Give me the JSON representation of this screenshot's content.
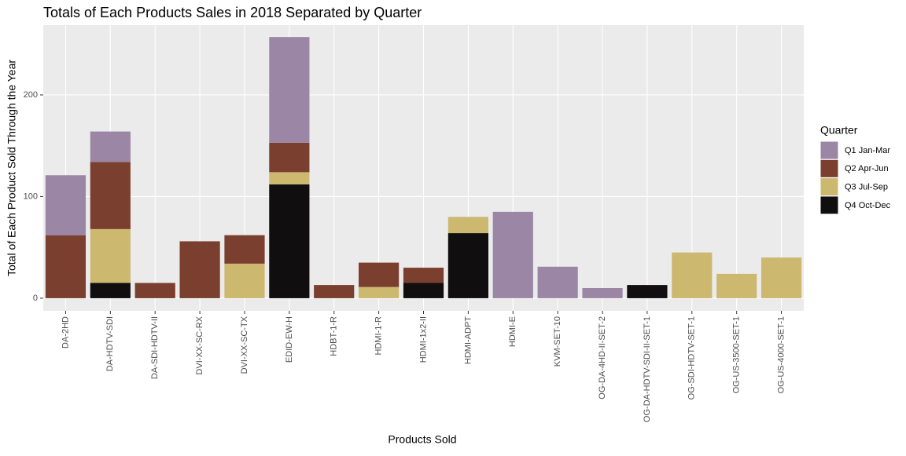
{
  "chart_data": {
    "type": "stacked-bar",
    "title": "Totals of Each Products Sales in 2018 Separated by Quarter",
    "x_label": "Products Sold",
    "y_label": "Total of Each Product Sold Through the Year",
    "legend_title": "Quarter",
    "categories": [
      "DA-2HD",
      "DA-HDTV-SDI",
      "DA-SDI-HDTV-II",
      "DVI-XX-SC-RX",
      "DVI-XX-SC-TX",
      "EDID-EW-H",
      "HDBT-1-R",
      "HDMI-1-R",
      "HDMI-1x2-II",
      "HDMI-ADPT",
      "HDMI-E",
      "KVM-SET-10",
      "OG-DA-4HD-II-SET-2",
      "OG-DA-HDTV-SDI-II-SET-1",
      "OG-SDI-HDTV-SET-1",
      "OG-US-3500-SET-1",
      "OG-US-4000-SET-1"
    ],
    "series": [
      {
        "name": "Q1 Jan-Mar",
        "color": "#9b87a5",
        "values": [
          59,
          30,
          null,
          null,
          null,
          104,
          null,
          null,
          null,
          null,
          85,
          31,
          10,
          null,
          null,
          null,
          null
        ]
      },
      {
        "name": "Q2 Apr-Jun",
        "color": "#7b3f2f",
        "values": [
          62,
          66,
          15,
          56,
          28,
          29,
          13,
          24,
          15,
          null,
          null,
          null,
          null,
          null,
          null,
          null,
          null
        ]
      },
      {
        "name": "Q3 Jul-Sep",
        "color": "#cdb870",
        "values": [
          null,
          53,
          null,
          null,
          34,
          12,
          null,
          11,
          null,
          16,
          null,
          null,
          null,
          null,
          45,
          24,
          40
        ]
      },
      {
        "name": "Q4 Oct-Dec",
        "color": "#100e0f",
        "values": [
          null,
          15,
          null,
          null,
          null,
          112,
          null,
          null,
          15,
          64,
          null,
          null,
          null,
          13,
          null,
          null,
          null
        ]
      }
    ],
    "ylim": [
      -12.4,
      268.7
    ],
    "yticks": [
      0,
      100,
      200
    ],
    "grid": true,
    "legend_position": "right"
  }
}
